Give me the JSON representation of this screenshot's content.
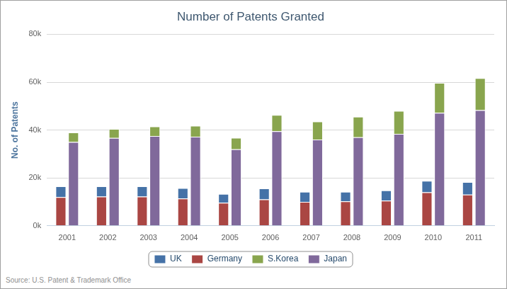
{
  "chart_data": {
    "type": "bar",
    "title": "Number of Patents Granted",
    "y_label": "No. of Patents",
    "source": "Source: U.S. Patent & Trademark Office",
    "categories": [
      "2001",
      "2002",
      "2003",
      "2004",
      "2005",
      "2006",
      "2007",
      "2008",
      "2009",
      "2010",
      "2011"
    ],
    "series": [
      {
        "name": "UK",
        "color": "#4572a7",
        "values": [
          4500,
          4300,
          4300,
          4400,
          3700,
          4600,
          4200,
          4000,
          4300,
          4800,
          5300
        ]
      },
      {
        "name": "Germany",
        "color": "#aa4643",
        "values": [
          12000,
          12200,
          12200,
          11400,
          9600,
          11000,
          10000,
          10200,
          10500,
          14000,
          13000
        ]
      },
      {
        "name": "S.Korea",
        "color": "#89a54e",
        "values": [
          4000,
          3800,
          4000,
          4600,
          4800,
          6800,
          7600,
          8600,
          9600,
          12500,
          13400
        ]
      },
      {
        "name": "Japan",
        "color": "#80699b",
        "values": [
          35000,
          36700,
          37500,
          37200,
          32000,
          39500,
          36000,
          37000,
          38400,
          47200,
          48300
        ]
      }
    ],
    "stacked": true,
    "ylim": [
      0,
      80000
    ],
    "yticks": [
      {
        "value": 0,
        "label": "0k"
      },
      {
        "value": 20000,
        "label": "20k"
      },
      {
        "value": 40000,
        "label": "40k"
      },
      {
        "value": 60000,
        "label": "60k"
      },
      {
        "value": 80000,
        "label": "80k"
      }
    ],
    "grid": true,
    "legend": "bottom"
  }
}
